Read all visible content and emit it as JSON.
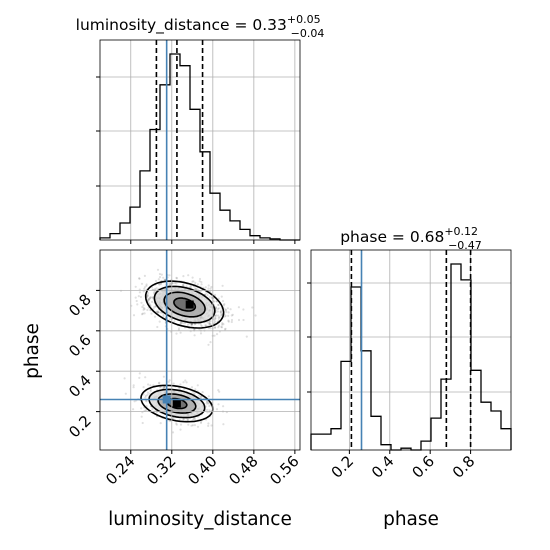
{
  "chart_data": {
    "type": "corner",
    "parameters": [
      "luminosity_distance",
      "phase"
    ],
    "truth": {
      "luminosity_distance": 0.31,
      "phase": 0.26
    },
    "titles": [
      {
        "param": "luminosity_distance",
        "prefix": "luminosity_distance = ",
        "value": "0.33",
        "plus": "+0.05",
        "minus": "−0.04"
      },
      {
        "param": "phase",
        "prefix": "phase = ",
        "value": "0.68",
        "plus": "+0.12",
        "minus": "−0.47"
      }
    ],
    "axes": {
      "luminosity_distance": {
        "label": "luminosity_distance",
        "range": [
          0.18,
          0.57
        ],
        "ticks": [
          0.24,
          0.32,
          0.4,
          0.48,
          0.56
        ],
        "tick_labels": [
          "0.24",
          "0.32",
          "0.40",
          "0.48",
          "0.56"
        ]
      },
      "phase": {
        "label": "phase",
        "range": [
          0.01,
          1.0
        ],
        "ticks": [
          0.2,
          0.4,
          0.6,
          0.8
        ],
        "tick_labels": [
          "0.2",
          "0.4",
          "0.6",
          "0.8"
        ]
      }
    },
    "hist_luminosity_distance": {
      "bin_edges": [
        0.18,
        0.1995,
        0.219,
        0.2385,
        0.258,
        0.2775,
        0.297,
        0.3165,
        0.336,
        0.3555,
        0.375,
        0.3945,
        0.414,
        0.4335,
        0.453,
        0.4725,
        0.492,
        0.5115,
        0.531,
        0.5505,
        0.57
      ],
      "counts": [
        2,
        6,
        16,
        31,
        65,
        104,
        146,
        175,
        164,
        123,
        83,
        44,
        28,
        18,
        10,
        4,
        2,
        1,
        0,
        0
      ],
      "quantiles": [
        0.29,
        0.33,
        0.38
      ]
    },
    "hist_phase": {
      "bin_edges": [
        0.01,
        0.0595,
        0.109,
        0.1585,
        0.208,
        0.2575,
        0.307,
        0.3565,
        0.406,
        0.4555,
        0.505,
        0.5545,
        0.604,
        0.6535,
        0.703,
        0.7525,
        0.802,
        0.8515,
        0.901,
        0.9505,
        1.0
      ],
      "counts": [
        9,
        9,
        12,
        50,
        92,
        56,
        19,
        3,
        0,
        1,
        0,
        5,
        18,
        40,
        105,
        96,
        45,
        27,
        22,
        12
      ],
      "quantiles": [
        0.21,
        0.68,
        0.8
      ]
    },
    "joint_2d": {
      "x_param": "luminosity_distance",
      "y_param": "phase",
      "modes": [
        {
          "x": 0.345,
          "y": 0.73,
          "sx": 0.038,
          "sy": 0.058,
          "rho": -0.35,
          "weight": 0.7
        },
        {
          "x": 0.33,
          "y": 0.24,
          "sx": 0.035,
          "sy": 0.045,
          "rho": -0.3,
          "weight": 0.3
        }
      ]
    }
  }
}
